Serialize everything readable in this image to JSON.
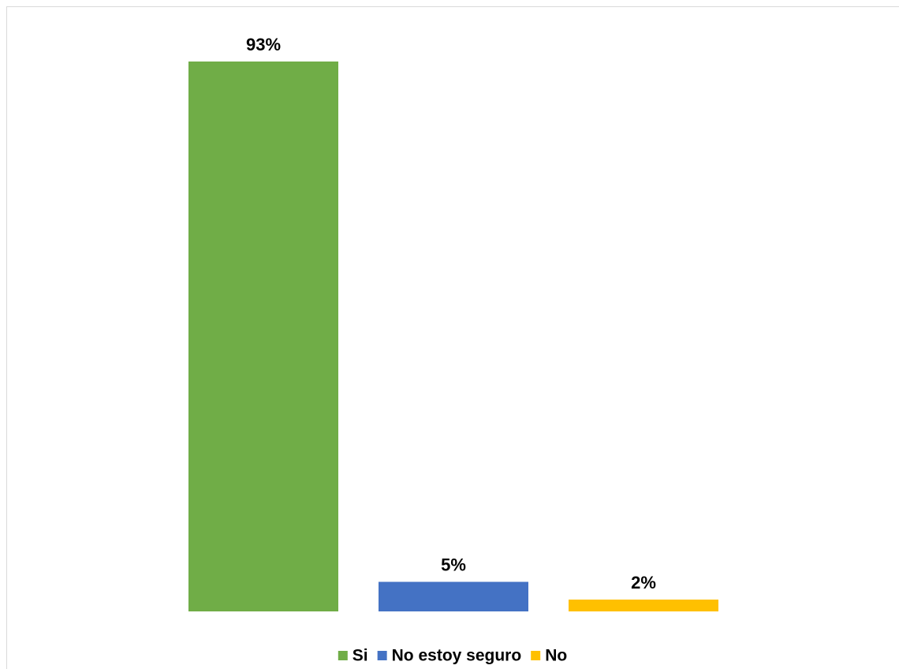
{
  "chart_data": {
    "type": "bar",
    "categories": [
      null
    ],
    "series": [
      {
        "name": "Si",
        "color": "#70ad47",
        "values": [
          93
        ],
        "value_labels": [
          "93%"
        ]
      },
      {
        "name": "No estoy seguro",
        "color": "#4472c4",
        "values": [
          5
        ],
        "value_labels": [
          "5%"
        ]
      },
      {
        "name": "No",
        "color": "#ffc000",
        "values": [
          2
        ],
        "value_labels": [
          "2%"
        ]
      }
    ],
    "ylim": [
      0,
      100
    ],
    "legend": "bottom"
  }
}
